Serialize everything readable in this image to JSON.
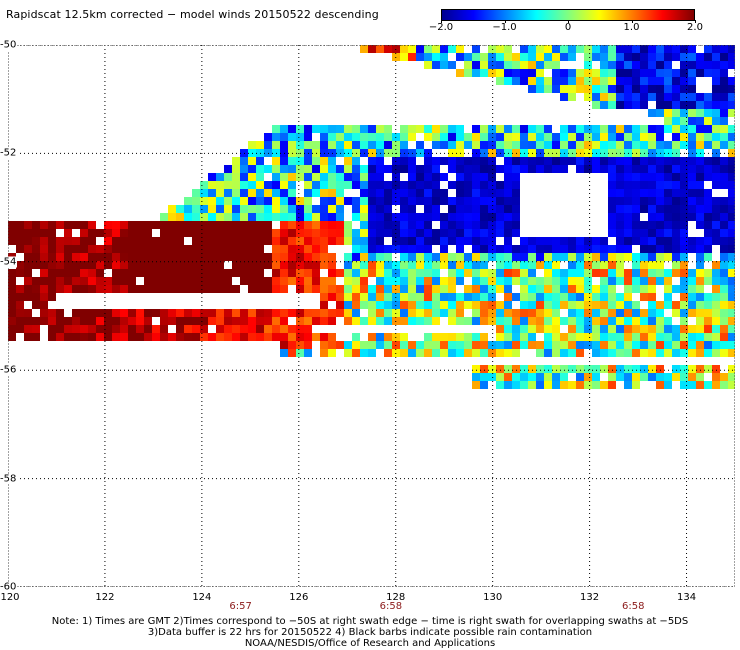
{
  "title": "Rapidscat 12.5km corrected − model winds 20150522 descending",
  "colorbar": {
    "min": -2.0,
    "max": 2.0,
    "labels": [
      "−2.0",
      "−1.0",
      "0",
      "1.0",
      "2.0"
    ],
    "label_values": [
      -2.0,
      -1.0,
      0.0,
      1.0,
      2.0
    ],
    "colors": [
      "#00008f",
      "#0000ff",
      "#0080ff",
      "#00ffff",
      "#80ff80",
      "#ffff00",
      "#ff8000",
      "#ff0000",
      "#800000"
    ]
  },
  "map": {
    "lon_range": [
      120,
      135
    ],
    "lat_range": [
      -60,
      -50
    ],
    "lon_labels": [
      "120",
      "122",
      "124",
      "126",
      "128",
      "130",
      "132",
      "134"
    ],
    "lon_values": [
      120,
      122,
      124,
      126,
      128,
      130,
      132,
      134
    ],
    "lat_labels": [
      "-50",
      "-52",
      "-54",
      "-56",
      "-58",
      "-60"
    ],
    "lat_values": [
      -50,
      -52,
      -54,
      -56,
      -58,
      -60
    ],
    "grid": "dotted"
  },
  "swath_times": [
    {
      "label": "6:57",
      "lon": 124.8
    },
    {
      "label": "6:58",
      "lon": 127.9
    },
    {
      "label": "6:58",
      "lon": 132.9
    }
  ],
  "notes": [
    "Note: 1) Times are GMT 2)Times correspond to −50S at right swath edge − time is right swath for overlapping swaths at −5DS",
    "3)Data buffer is 22 hrs for 20150522 4) Black barbs indicate possible rain contamination",
    "NOAA/NESDIS/Office of Research and Applications"
  ]
}
